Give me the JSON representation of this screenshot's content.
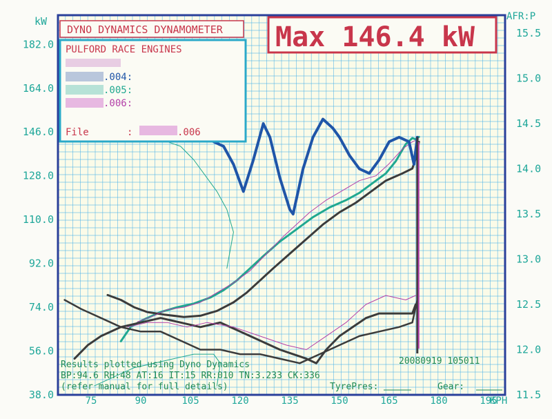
{
  "header": {
    "title": "DYNO DYNAMICS DYNAMOMETER",
    "max_label": "Max 146.4 kW"
  },
  "legend": {
    "company": "PULFORD RACE ENGINES",
    "runs": [
      ".004:",
      ".005:",
      ".006:"
    ],
    "file_label": "File",
    "file_sep": ":",
    "file_suffix": ".006"
  },
  "footer": {
    "line1": "Results plotted using Dyno Dynamics",
    "line2": "BP:94.6  RH:48 AT:16 IT:15  RR:010 TN:3.233 CK:336",
    "line3": "(refer manual for full details)",
    "tyre": "TyrePres:",
    "gear": "Gear:",
    "datetime": "20080919 105011"
  },
  "colors": {
    "grid": "#46b0e8",
    "frame": "#2a3f9a",
    "axis_text": "#1fa79a",
    "title_red": "#c8364b",
    "footer_green": "#1f8a55",
    "run_004": "#1f55a8",
    "run_005": "#20a890",
    "run_006": "#b33fa8",
    "run_black": "#3b3b3b"
  },
  "chart_data": {
    "type": "line",
    "xlabel": "KPH",
    "ylabel_left": "kW",
    "ylabel_right": "AFR:P",
    "xlim": [
      65,
      200
    ],
    "ylim_left": [
      38,
      194
    ],
    "ylim_right": [
      11.5,
      15.7
    ],
    "x_ticks": [
      75,
      90,
      105,
      120,
      135,
      150,
      165,
      180,
      195
    ],
    "y_ticks_left": [
      "38.0",
      "56.0",
      "74.0",
      "92.0",
      "110.0",
      "128.0",
      "146.0",
      "164.0",
      "182.0"
    ],
    "y_ticks_right": [
      "11.5",
      "12.0",
      "12.5",
      "13.0",
      "13.5",
      "14.0",
      "14.5",
      "15.0",
      "15.5"
    ],
    "grid": true,
    "series": [
      {
        "name": ".005:",
        "kind": "power",
        "color": "#20a890",
        "width": 3,
        "points": [
          [
            84,
            60
          ],
          [
            87,
            66
          ],
          [
            91,
            69
          ],
          [
            96,
            72
          ],
          [
            101,
            74
          ],
          [
            106,
            75.5
          ],
          [
            111,
            78
          ],
          [
            115,
            81
          ],
          [
            119,
            85
          ],
          [
            123,
            90
          ],
          [
            127,
            95
          ],
          [
            132,
            101
          ],
          [
            137,
            106
          ],
          [
            142,
            111
          ],
          [
            147,
            115
          ],
          [
            152,
            118
          ],
          [
            156,
            121
          ],
          [
            160,
            125
          ],
          [
            164,
            129
          ],
          [
            167,
            134
          ],
          [
            170,
            141
          ],
          [
            172,
            143.5
          ],
          [
            173,
            143
          ],
          [
            174,
            144
          ]
        ]
      },
      {
        "name": "",
        "kind": "power",
        "color": "#3b3b3b",
        "width": 3,
        "points": [
          [
            80,
            79
          ],
          [
            84,
            77
          ],
          [
            88,
            74
          ],
          [
            92,
            72
          ],
          [
            97,
            71
          ],
          [
            103,
            70
          ],
          [
            108,
            70.5
          ],
          [
            113,
            72.5
          ],
          [
            118,
            76
          ],
          [
            122,
            80
          ],
          [
            126,
            85
          ],
          [
            130,
            90
          ],
          [
            135,
            96
          ],
          [
            140,
            102
          ],
          [
            145,
            108
          ],
          [
            150,
            113
          ],
          [
            155,
            117
          ],
          [
            160,
            122
          ],
          [
            164,
            126
          ],
          [
            169,
            129
          ],
          [
            172,
            131
          ],
          [
            173,
            135
          ],
          [
            174,
            142
          ]
        ]
      },
      {
        "name": ".006:",
        "kind": "power",
        "color": "#b33fa8",
        "width": 1,
        "points": [
          [
            89,
            68
          ],
          [
            93,
            70
          ],
          [
            98,
            73
          ],
          [
            103,
            74
          ],
          [
            108,
            76
          ],
          [
            113,
            80
          ],
          [
            118,
            84
          ],
          [
            123,
            89
          ],
          [
            128,
            96
          ],
          [
            133,
            103
          ],
          [
            137,
            108
          ],
          [
            141,
            113
          ],
          [
            146,
            118
          ],
          [
            151,
            122
          ],
          [
            156,
            126
          ],
          [
            161,
            128
          ],
          [
            165,
            133
          ],
          [
            169,
            139
          ],
          [
            172,
            142
          ],
          [
            174,
            143
          ]
        ]
      },
      {
        "name": ".004:",
        "kind": "afr",
        "color": "#1f55a8",
        "width": 4,
        "points": [
          [
            112,
            14.3
          ],
          [
            115,
            14.25
          ],
          [
            118,
            14.05
          ],
          [
            121,
            13.75
          ],
          [
            124,
            14.1
          ],
          [
            127,
            14.5
          ],
          [
            129,
            14.35
          ],
          [
            132,
            13.9
          ],
          [
            135,
            13.55
          ],
          [
            136,
            13.5
          ],
          [
            139,
            14.0
          ],
          [
            142,
            14.35
          ],
          [
            145,
            14.55
          ],
          [
            148,
            14.45
          ],
          [
            150,
            14.35
          ],
          [
            153,
            14.15
          ],
          [
            156,
            14.0
          ],
          [
            159,
            13.95
          ],
          [
            162,
            14.1
          ],
          [
            165,
            14.3
          ],
          [
            168,
            14.35
          ],
          [
            171,
            14.3
          ],
          [
            172.5,
            14.05
          ],
          [
            173.5,
            14.35
          ]
        ]
      },
      {
        "name": "",
        "kind": "afr",
        "color": "#3b3b3b",
        "width": 3,
        "points": [
          [
            70,
            11.9
          ],
          [
            74,
            12.05
          ],
          [
            78,
            12.15
          ],
          [
            84,
            12.25
          ],
          [
            90,
            12.3
          ],
          [
            96,
            12.35
          ],
          [
            102,
            12.3
          ],
          [
            108,
            12.25
          ],
          [
            114,
            12.3
          ],
          [
            120,
            12.2
          ],
          [
            126,
            12.1
          ],
          [
            132,
            12.0
          ],
          [
            136,
            11.95
          ],
          [
            140,
            11.9
          ],
          [
            143,
            11.85
          ],
          [
            146,
            12.0
          ],
          [
            150,
            12.15
          ],
          [
            154,
            12.25
          ],
          [
            158,
            12.35
          ],
          [
            162,
            12.4
          ],
          [
            166,
            12.4
          ],
          [
            170,
            12.4
          ],
          [
            172,
            12.4
          ],
          [
            173,
            12.5
          ]
        ]
      },
      {
        "name": "",
        "kind": "afr",
        "color": "#3b3b3b",
        "width": 2.5,
        "points": [
          [
            67,
            12.55
          ],
          [
            72,
            12.45
          ],
          [
            78,
            12.35
          ],
          [
            84,
            12.25
          ],
          [
            90,
            12.2
          ],
          [
            96,
            12.2
          ],
          [
            102,
            12.1
          ],
          [
            108,
            12.0
          ],
          [
            114,
            12.0
          ],
          [
            120,
            11.95
          ],
          [
            126,
            11.95
          ],
          [
            132,
            11.9
          ],
          [
            138,
            11.85
          ],
          [
            144,
            11.95
          ],
          [
            150,
            12.05
          ],
          [
            156,
            12.15
          ],
          [
            162,
            12.2
          ],
          [
            168,
            12.25
          ],
          [
            172,
            12.3
          ],
          [
            173.5,
            12.55
          ]
        ]
      },
      {
        "name": "",
        "kind": "afr",
        "color": "#b33fa8",
        "width": 1,
        "points": [
          [
            86,
            12.25
          ],
          [
            92,
            12.3
          ],
          [
            98,
            12.3
          ],
          [
            104,
            12.25
          ],
          [
            110,
            12.3
          ],
          [
            118,
            12.25
          ],
          [
            126,
            12.15
          ],
          [
            134,
            12.05
          ],
          [
            140,
            12.0
          ],
          [
            146,
            12.15
          ],
          [
            152,
            12.3
          ],
          [
            158,
            12.5
          ],
          [
            164,
            12.6
          ],
          [
            170,
            12.55
          ],
          [
            173,
            12.6
          ]
        ]
      },
      {
        "name": "",
        "kind": "afr",
        "color": "#20a890",
        "width": 1,
        "points": [
          [
            76,
            11.6
          ],
          [
            82,
            11.7
          ],
          [
            88,
            11.8
          ],
          [
            94,
            11.85
          ],
          [
            100,
            11.9
          ],
          [
            106,
            11.95
          ],
          [
            112,
            11.95
          ],
          [
            114,
            11.85
          ],
          [
            113,
            11.6
          ]
        ]
      },
      {
        "name": "",
        "kind": "afr",
        "color": "#20a890",
        "width": 1,
        "points": [
          [
            94,
            14.35
          ],
          [
            98,
            14.3
          ],
          [
            102,
            14.25
          ],
          [
            106,
            14.1
          ],
          [
            110,
            13.9
          ],
          [
            113,
            13.75
          ],
          [
            116,
            13.55
          ],
          [
            118,
            13.3
          ],
          [
            117,
            13.1
          ],
          [
            116,
            12.9
          ]
        ]
      }
    ]
  }
}
